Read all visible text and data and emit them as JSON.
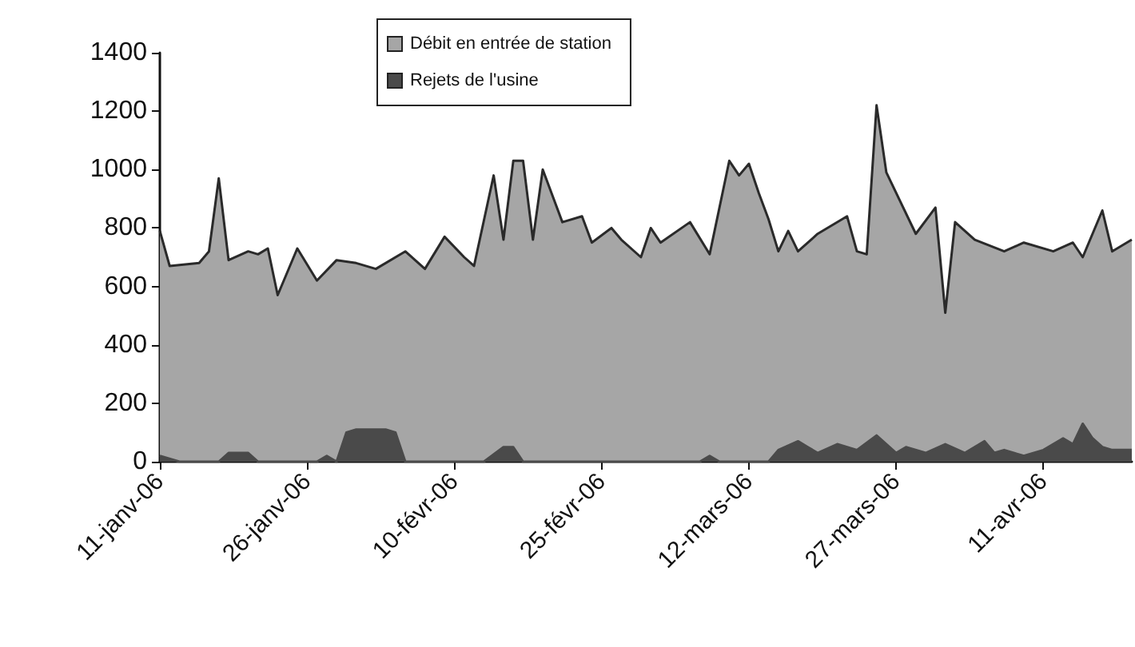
{
  "chart_data": {
    "type": "area",
    "legend": "top",
    "grid": false,
    "marker": "none",
    "xlim": [
      "2006-01-11",
      "2006-04-20"
    ],
    "xticks": [
      {
        "value": "2006-01-11",
        "label": "11-janv-06"
      },
      {
        "value": "2006-01-26",
        "label": "26-janv-06"
      },
      {
        "value": "2006-02-10",
        "label": "10-févr-06"
      },
      {
        "value": "2006-02-25",
        "label": "25-févr-06"
      },
      {
        "value": "2006-03-12",
        "label": "12-mars-06"
      },
      {
        "value": "2006-03-27",
        "label": "27-mars-06"
      },
      {
        "value": "2006-04-11",
        "label": "11-avr-06"
      }
    ],
    "ylim": [
      0,
      1400
    ],
    "yticks": [
      0,
      200,
      400,
      600,
      800,
      1000,
      1200,
      1400
    ],
    "series": [
      {
        "name": "Débit en entrée de station",
        "color": "#a6a6a6",
        "x": [
          "2006-01-11",
          "2006-01-12",
          "2006-01-15",
          "2006-01-16",
          "2006-01-17",
          "2006-01-18",
          "2006-01-20",
          "2006-01-21",
          "2006-01-22",
          "2006-01-23",
          "2006-01-25",
          "2006-01-27",
          "2006-01-29",
          "2006-01-31",
          "2006-02-02",
          "2006-02-05",
          "2006-02-07",
          "2006-02-09",
          "2006-02-11",
          "2006-02-12",
          "2006-02-14",
          "2006-02-15",
          "2006-02-16",
          "2006-02-17",
          "2006-02-18",
          "2006-02-19",
          "2006-02-21",
          "2006-02-23",
          "2006-02-24",
          "2006-02-26",
          "2006-02-27",
          "2006-03-01",
          "2006-03-02",
          "2006-03-03",
          "2006-03-06",
          "2006-03-08",
          "2006-03-10",
          "2006-03-11",
          "2006-03-12",
          "2006-03-13",
          "2006-03-14",
          "2006-03-15",
          "2006-03-16",
          "2006-03-17",
          "2006-03-19",
          "2006-03-22",
          "2006-03-23",
          "2006-03-24",
          "2006-03-25",
          "2006-03-26",
          "2006-03-29",
          "2006-03-31",
          "2006-04-01",
          "2006-04-02",
          "2006-04-04",
          "2006-04-07",
          "2006-04-09",
          "2006-04-12",
          "2006-04-14",
          "2006-04-15",
          "2006-04-17",
          "2006-04-18",
          "2006-04-20"
        ],
        "values": [
          790,
          670,
          680,
          720,
          970,
          690,
          720,
          710,
          730,
          570,
          730,
          620,
          690,
          680,
          660,
          720,
          660,
          770,
          700,
          670,
          980,
          760,
          1030,
          1030,
          760,
          1000,
          820,
          840,
          750,
          800,
          760,
          700,
          800,
          750,
          820,
          710,
          1030,
          980,
          1020,
          920,
          830,
          720,
          790,
          720,
          780,
          840,
          720,
          710,
          1220,
          990,
          780,
          870,
          510,
          820,
          760,
          720,
          750,
          720,
          750,
          700,
          860,
          720,
          760
        ]
      },
      {
        "name": "Rejets de l'usine",
        "color": "#4a4a4a",
        "x": [
          "2006-01-11",
          "2006-01-13",
          "2006-01-17",
          "2006-01-18",
          "2006-01-20",
          "2006-01-21",
          "2006-01-27",
          "2006-01-28",
          "2006-01-29",
          "2006-01-30",
          "2006-01-31",
          "2006-02-03",
          "2006-02-04",
          "2006-02-05",
          "2006-02-13",
          "2006-02-15",
          "2006-02-16",
          "2006-02-17",
          "2006-03-07",
          "2006-03-08",
          "2006-03-09",
          "2006-03-14",
          "2006-03-15",
          "2006-03-17",
          "2006-03-18",
          "2006-03-19",
          "2006-03-21",
          "2006-03-23",
          "2006-03-25",
          "2006-03-27",
          "2006-03-28",
          "2006-03-30",
          "2006-04-01",
          "2006-04-03",
          "2006-04-05",
          "2006-04-06",
          "2006-04-07",
          "2006-04-09",
          "2006-04-11",
          "2006-04-13",
          "2006-04-14",
          "2006-04-15",
          "2006-04-16",
          "2006-04-17",
          "2006-04-18",
          "2006-04-20"
        ],
        "values": [
          20,
          0,
          0,
          30,
          30,
          0,
          0,
          20,
          0,
          100,
          110,
          110,
          100,
          0,
          0,
          50,
          50,
          0,
          0,
          20,
          0,
          0,
          40,
          70,
          50,
          30,
          60,
          40,
          90,
          30,
          50,
          30,
          60,
          30,
          70,
          30,
          40,
          20,
          40,
          80,
          60,
          130,
          80,
          50,
          40,
          40
        ]
      }
    ]
  }
}
